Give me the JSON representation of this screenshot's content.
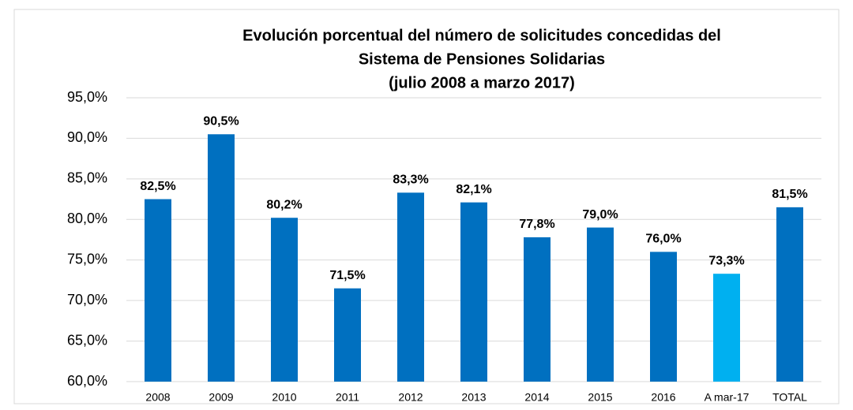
{
  "chart_data": {
    "type": "bar",
    "title": [
      "Evolución porcentual del número de solicitudes concedidas del",
      "Sistema de Pensiones Solidarias",
      "(julio 2008 a marzo 2017)"
    ],
    "categories": [
      "2008",
      "2009",
      "2010",
      "2011",
      "2012",
      "2013",
      "2014",
      "2015",
      "2016",
      "A mar-17",
      "TOTAL"
    ],
    "values": [
      82.5,
      90.5,
      80.2,
      71.5,
      83.3,
      82.1,
      77.8,
      79.0,
      76.0,
      73.3,
      81.5
    ],
    "value_labels": [
      "82,5%",
      "90,5%",
      "80,2%",
      "71,5%",
      "83,3%",
      "82,1%",
      "77,8%",
      "79,0%",
      "76,0%",
      "73,3%",
      "81,5%"
    ],
    "colors": [
      "#0070c0",
      "#0070c0",
      "#0070c0",
      "#0070c0",
      "#0070c0",
      "#0070c0",
      "#0070c0",
      "#0070c0",
      "#0070c0",
      "#00b0f0",
      "#0070c0"
    ],
    "ylim": [
      60,
      95
    ],
    "yticks": [
      {
        "value": 60,
        "label": "60,0%"
      },
      {
        "value": 65,
        "label": "65,0%"
      },
      {
        "value": 70,
        "label": "70,0%"
      },
      {
        "value": 75,
        "label": "75,0%"
      },
      {
        "value": 80,
        "label": "80,0%"
      },
      {
        "value": 85,
        "label": "85,0%"
      },
      {
        "value": 90,
        "label": "90,0%"
      },
      {
        "value": 95,
        "label": "95,0%"
      }
    ],
    "grid": true
  }
}
